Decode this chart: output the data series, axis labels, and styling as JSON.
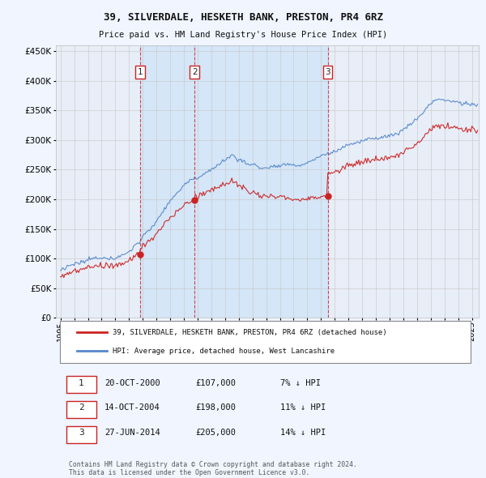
{
  "title": "39, SILVERDALE, HESKETH BANK, PRESTON, PR4 6RZ",
  "subtitle": "Price paid vs. HM Land Registry's House Price Index (HPI)",
  "yticks": [
    0,
    50000,
    100000,
    150000,
    200000,
    250000,
    300000,
    350000,
    400000,
    450000
  ],
  "ytick_labels": [
    "£0",
    "£50K",
    "£100K",
    "£150K",
    "£200K",
    "£250K",
    "£300K",
    "£350K",
    "£400K",
    "£450K"
  ],
  "ylim": [
    0,
    460000
  ],
  "hpi_color": "#5588cc",
  "price_color": "#cc2222",
  "vline_color": "#cc2222",
  "grid_color": "#cccccc",
  "bg_color": "#f0f5ff",
  "plot_bg": "#e8eef8",
  "shade_color": "#d0e4f7",
  "sale_prices": [
    107000,
    198000,
    205000
  ],
  "sale_labels": [
    "1",
    "2",
    "3"
  ],
  "legend_label_red": "39, SILVERDALE, HESKETH BANK, PRESTON, PR4 6RZ (detached house)",
  "legend_label_blue": "HPI: Average price, detached house, West Lancashire",
  "table_data": [
    [
      "1",
      "20-OCT-2000",
      "£107,000",
      "7% ↓ HPI"
    ],
    [
      "2",
      "14-OCT-2004",
      "£198,000",
      "11% ↓ HPI"
    ],
    [
      "3",
      "27-JUN-2014",
      "£205,000",
      "14% ↓ HPI"
    ]
  ],
  "footer": "Contains HM Land Registry data © Crown copyright and database right 2024.\nThis data is licensed under the Open Government Licence v3.0."
}
